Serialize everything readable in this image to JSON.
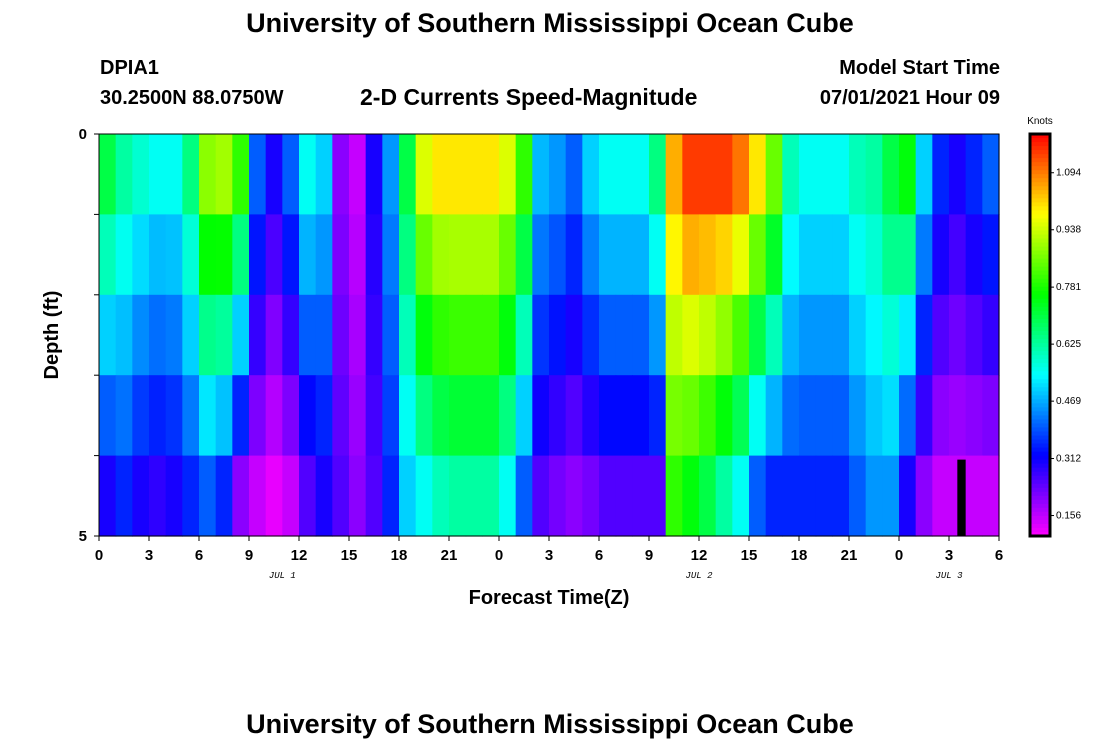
{
  "header": {
    "title": "University of Southern Mississippi Ocean Cube",
    "station": "DPIA1",
    "coords": "30.2500N  88.0750W",
    "subtitle": "2-D Currents Speed-Magnitude",
    "model_label": "Model Start Time",
    "model_time": "07/01/2021 Hour 09"
  },
  "footer": {
    "title": "University of Southern Mississippi Ocean Cube"
  },
  "chart_data": {
    "type": "heatmap",
    "title": "2-D Currents Speed-Magnitude",
    "xlabel": "Forecast Time(Z)",
    "ylabel": "Depth (ft)",
    "y_ticks": [
      "0",
      "5"
    ],
    "ylim": [
      0,
      5
    ],
    "x_tick_labels": [
      "0",
      "3",
      "6",
      "9",
      "12",
      "15",
      "18",
      "21",
      "0",
      "3",
      "6",
      "9",
      "12",
      "15",
      "18",
      "21",
      "0",
      "3",
      "6"
    ],
    "date_labels": [
      {
        "label": "JUL 1",
        "hour": 11
      },
      {
        "label": "JUL 2",
        "hour": 36
      },
      {
        "label": "JUL 3",
        "hour": 51
      }
    ],
    "hours": 54,
    "depth_rows": 5,
    "colorbar": {
      "unit": "Knots",
      "ticks": [
        "1.094",
        "0.938",
        "0.781",
        "0.625",
        "0.469",
        "0.312",
        "0.156"
      ],
      "tick_values": [
        1.094,
        0.938,
        0.781,
        0.625,
        0.469,
        0.312,
        0.156
      ],
      "range": [
        0.1,
        1.2
      ]
    },
    "surface_speed": [
      0.7,
      0.62,
      0.58,
      0.55,
      0.55,
      0.65,
      0.88,
      0.9,
      0.8,
      0.4,
      0.3,
      0.4,
      0.55,
      0.5,
      0.2,
      0.15,
      0.3,
      0.45,
      0.7,
      0.95,
      1.0,
      1.0,
      1.0,
      1.0,
      0.95,
      0.8,
      0.48,
      0.45,
      0.4,
      0.5,
      0.55,
      0.55,
      0.55,
      0.65,
      1.05,
      1.15,
      1.15,
      1.15,
      1.1,
      1.0,
      0.85,
      0.6,
      0.55,
      0.55,
      0.55,
      0.6,
      0.62,
      0.7,
      0.75,
      0.5,
      0.35,
      0.3,
      0.35,
      0.4
    ],
    "bottom_speed": [
      0.3,
      0.35,
      0.3,
      0.28,
      0.3,
      0.35,
      0.4,
      0.35,
      0.2,
      0.15,
      0.12,
      0.15,
      0.25,
      0.3,
      0.25,
      0.2,
      0.25,
      0.35,
      0.5,
      0.55,
      0.6,
      0.62,
      0.62,
      0.62,
      0.55,
      0.4,
      0.25,
      0.22,
      0.2,
      0.22,
      0.25,
      0.25,
      0.25,
      0.25,
      0.8,
      0.75,
      0.7,
      0.62,
      0.55,
      0.4,
      0.35,
      0.35,
      0.35,
      0.35,
      0.35,
      0.4,
      0.45,
      0.45,
      0.3,
      0.2,
      0.15,
      0.15,
      0.15,
      0.15
    ],
    "marker_hour": 51.5
  }
}
